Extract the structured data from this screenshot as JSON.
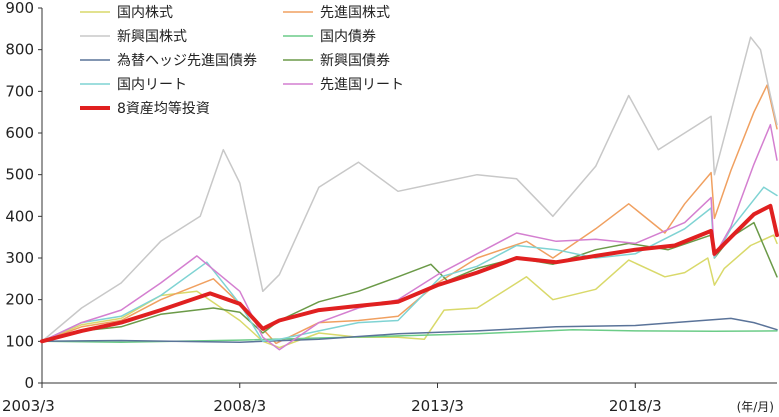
{
  "chart_data": {
    "type": "line",
    "xlabel": "",
    "ylabel": "",
    "x_unit": "(年/月)",
    "xlim": [
      "2003/3",
      "2021/10"
    ],
    "ylim": [
      0,
      900
    ],
    "yticks": [
      0,
      100,
      200,
      300,
      400,
      500,
      600,
      700,
      800,
      900
    ],
    "xticks": [
      "2003/3",
      "2008/3",
      "2013/3",
      "2018/3"
    ],
    "grid": false,
    "legend_position": "top-left",
    "series": [
      {
        "name": "国内株式",
        "color": "#d9d96a",
        "width": 1.5,
        "x": [
          "2003/3",
          "2004/3",
          "2005/3",
          "2006/3",
          "2007/2",
          "2008/3",
          "2008/10",
          "2009/3",
          "2010/3",
          "2011/3",
          "2012/3",
          "2012/11",
          "2013/5",
          "2014/3",
          "2015/6",
          "2016/2",
          "2017/3",
          "2018/1",
          "2018/12",
          "2019/6",
          "2020/1",
          "2020/3",
          "2020/6",
          "2021/2",
          "2021/9",
          "2021/10"
        ],
        "y": [
          100,
          140,
          155,
          210,
          220,
          150,
          100,
          85,
          120,
          110,
          110,
          105,
          175,
          180,
          255,
          200,
          225,
          295,
          255,
          265,
          300,
          235,
          275,
          330,
          355,
          335
        ]
      },
      {
        "name": "先進国株式",
        "color": "#f0a060",
        "width": 1.5,
        "x": [
          "2003/3",
          "2004/3",
          "2005/3",
          "2006/3",
          "2007/7",
          "2008/3",
          "2009/2",
          "2010/3",
          "2011/3",
          "2012/3",
          "2013/3",
          "2014/3",
          "2015/6",
          "2016/2",
          "2017/3",
          "2018/1",
          "2018/12",
          "2019/6",
          "2020/2",
          "2020/3",
          "2020/8",
          "2021/3",
          "2021/7",
          "2021/8",
          "2021/10"
        ],
        "y": [
          100,
          135,
          150,
          200,
          250,
          190,
          95,
          145,
          150,
          160,
          240,
          300,
          340,
          300,
          370,
          430,
          360,
          430,
          505,
          395,
          510,
          650,
          715,
          680,
          610
        ]
      },
      {
        "name": "新興国株式",
        "color": "#c8c8c8",
        "width": 1.5,
        "x": [
          "2003/3",
          "2004/3",
          "2005/3",
          "2006/3",
          "2007/3",
          "2007/10",
          "2008/3",
          "2008/10",
          "2009/3",
          "2010/3",
          "2011/3",
          "2012/3",
          "2013/3",
          "2014/3",
          "2015/3",
          "2016/2",
          "2017/3",
          "2018/1",
          "2018/10",
          "2019/6",
          "2020/2",
          "2020/3",
          "2020/8",
          "2021/2",
          "2021/5",
          "2021/8",
          "2021/10"
        ],
        "y": [
          100,
          180,
          240,
          340,
          400,
          560,
          480,
          220,
          260,
          470,
          530,
          460,
          480,
          500,
          490,
          400,
          520,
          690,
          560,
          600,
          640,
          500,
          650,
          830,
          800,
          690,
          620
        ]
      },
      {
        "name": "国内債券",
        "color": "#6ccc88",
        "width": 1.5,
        "x": [
          "2003/3",
          "2005/3",
          "2008/3",
          "2010/3",
          "2012/3",
          "2014/3",
          "2016/8",
          "2018/3",
          "2020/3",
          "2021/10"
        ],
        "y": [
          100,
          98,
          103,
          108,
          113,
          118,
          128,
          125,
          124,
          125
        ]
      },
      {
        "name": "為替ヘッジ先進国債券",
        "color": "#5a7399",
        "width": 1.5,
        "x": [
          "2003/3",
          "2005/3",
          "2008/3",
          "2010/3",
          "2012/3",
          "2014/3",
          "2016/3",
          "2018/3",
          "2020/8",
          "2021/3",
          "2021/10"
        ],
        "y": [
          100,
          102,
          98,
          105,
          118,
          125,
          135,
          138,
          155,
          145,
          128
        ]
      },
      {
        "name": "新興国債券",
        "color": "#6b9a48",
        "width": 1.5,
        "x": [
          "2003/3",
          "2004/3",
          "2005/3",
          "2006/3",
          "2007/7",
          "2008/3",
          "2008/10",
          "2009/3",
          "2010/3",
          "2011/3",
          "2012/3",
          "2013/1",
          "2013/6",
          "2014/3",
          "2015/3",
          "2016/2",
          "2017/3",
          "2018/1",
          "2019/1",
          "2020/2",
          "2020/3",
          "2020/8",
          "2021/3",
          "2021/10"
        ],
        "y": [
          100,
          125,
          135,
          165,
          180,
          170,
          120,
          150,
          195,
          220,
          255,
          285,
          245,
          275,
          300,
          285,
          320,
          335,
          320,
          355,
          300,
          350,
          385,
          255
        ]
      },
      {
        "name": "国内リート",
        "color": "#7fd3d3",
        "width": 1.5,
        "x": [
          "2003/3",
          "2004/3",
          "2005/3",
          "2006/3",
          "2007/5",
          "2008/3",
          "2008/10",
          "2009/3",
          "2010/3",
          "2011/3",
          "2012/3",
          "2013/4",
          "2014/3",
          "2015/3",
          "2016/3",
          "2017/3",
          "2018/3",
          "2019/6",
          "2020/2",
          "2020/3",
          "2020/8",
          "2021/3",
          "2021/6",
          "2021/10"
        ],
        "y": [
          100,
          145,
          160,
          210,
          290,
          190,
          100,
          105,
          125,
          145,
          150,
          255,
          280,
          330,
          320,
          300,
          310,
          370,
          420,
          300,
          370,
          440,
          470,
          450
        ]
      },
      {
        "name": "先進国リート",
        "color": "#d47fd0",
        "width": 1.5,
        "x": [
          "2003/3",
          "2004/3",
          "2005/3",
          "2006/3",
          "2007/2",
          "2008/3",
          "2008/10",
          "2009/3",
          "2010/3",
          "2011/3",
          "2012/3",
          "2013/3",
          "2014/3",
          "2015/3",
          "2016/3",
          "2017/3",
          "2018/3",
          "2019/6",
          "2020/2",
          "2020/3",
          "2020/8",
          "2021/3",
          "2021/8",
          "2021/10"
        ],
        "y": [
          100,
          145,
          175,
          240,
          305,
          220,
          110,
          80,
          145,
          180,
          200,
          260,
          310,
          360,
          340,
          345,
          335,
          385,
          445,
          305,
          375,
          525,
          620,
          535
        ]
      },
      {
        "name": "8資産均等投資",
        "color": "#e02020",
        "width": 4,
        "x": [
          "2003/3",
          "2004/3",
          "2005/3",
          "2006/3",
          "2007/6",
          "2008/3",
          "2008/10",
          "2009/3",
          "2010/3",
          "2011/3",
          "2012/3",
          "2013/3",
          "2014/3",
          "2015/3",
          "2016/3",
          "2017/3",
          "2018/3",
          "2019/3",
          "2020/2",
          "2020/3",
          "2020/8",
          "2021/3",
          "2021/8",
          "2021/10"
        ],
        "y": [
          100,
          125,
          145,
          175,
          215,
          190,
          130,
          150,
          175,
          185,
          195,
          235,
          265,
          300,
          290,
          305,
          320,
          330,
          365,
          310,
          350,
          405,
          425,
          355
        ]
      }
    ]
  }
}
